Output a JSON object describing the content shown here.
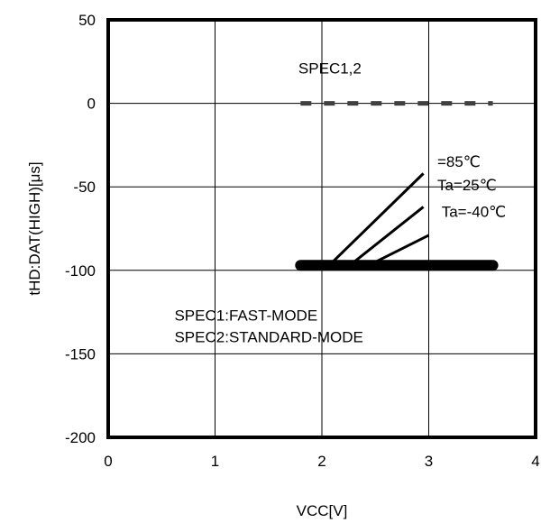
{
  "chart_data": {
    "type": "line",
    "title": "",
    "xlabel": "VCC[V]",
    "ylabel": "tHD:DAT(HIGH)[μs]",
    "xlim": [
      0,
      4
    ],
    "ylim": [
      -200,
      50
    ],
    "xticks": [
      0,
      1,
      2,
      3,
      4
    ],
    "yticks": [
      50,
      0,
      -50,
      -100,
      -150,
      -200
    ],
    "grid": true,
    "legend": "none",
    "series": [
      {
        "name": "Ta=85℃",
        "x": [
          2.1,
          2.95
        ],
        "y": [
          -95,
          -42
        ]
      },
      {
        "name": "Ta=25℃",
        "x": [
          2.3,
          2.95
        ],
        "y": [
          -95,
          -62
        ]
      },
      {
        "name": "Ta=-40℃",
        "x": [
          2.5,
          3.0
        ],
        "y": [
          -95,
          -79
        ]
      }
    ],
    "reference_lines": [
      {
        "label": "SPEC1,2",
        "style": "dashed",
        "color": "#404040",
        "x": [
          1.8,
          3.6
        ],
        "y": [
          0,
          0
        ]
      },
      {
        "label": "",
        "style": "thick",
        "color": "#000000",
        "x": [
          1.8,
          3.6
        ],
        "y": [
          -97,
          -97
        ]
      }
    ],
    "annotations": [
      {
        "text": "SPEC1,2",
        "x": 1.78,
        "y": 18
      },
      {
        "text": "=85℃",
        "x": 3.08,
        "y": -38
      },
      {
        "text": "Ta=25℃",
        "x": 3.08,
        "y": -52
      },
      {
        "text": "Ta=-40℃",
        "x": 3.12,
        "y": -68
      },
      {
        "text": "SPEC1:FAST-MODE",
        "x": 0.62,
        "y": -130
      },
      {
        "text": "SPEC2:STANDARD-MODE",
        "x": 0.62,
        "y": -143
      }
    ]
  }
}
